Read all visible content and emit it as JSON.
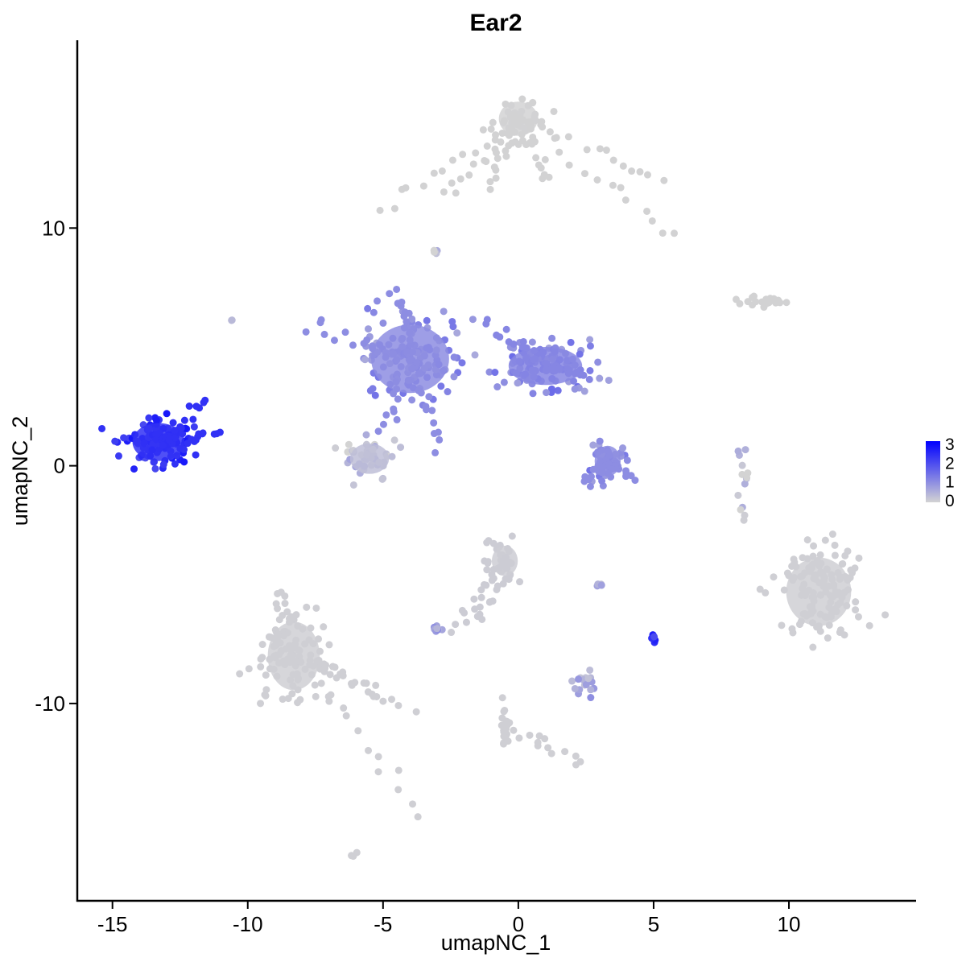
{
  "chart_data": {
    "type": "scatter",
    "title": "Ear2",
    "xlabel": "umapNC_1",
    "ylabel": "umapNC_2",
    "xlim": [
      -16.3,
      14.7
    ],
    "ylim": [
      -18.3,
      17.9
    ],
    "xticks": [
      -15,
      -10,
      -5,
      0,
      5,
      10
    ],
    "xtick_labels": [
      "-15",
      "-10",
      "-5",
      "0",
      "5",
      "10"
    ],
    "yticks": [
      10,
      0,
      -10
    ],
    "ytick_labels": [
      "10",
      "0",
      "-10"
    ],
    "grid": false,
    "legend": {
      "placement": "right",
      "labels": [
        "3",
        "2",
        "1",
        "0"
      ],
      "values": [
        3,
        2,
        1,
        0
      ],
      "min_color": "#d3d3d3",
      "max_color": "#0000ff"
    },
    "clusters": [
      {
        "center": [
          -13.3,
          1.0
        ],
        "spread": [
          1.2,
          1.0
        ],
        "expr": 2.3,
        "points": 110,
        "tail": [
          [
            -11.5,
            2.7
          ],
          [
            -11.0,
            1.3
          ]
        ]
      },
      {
        "center": [
          0.0,
          14.6
        ],
        "spread": [
          0.9,
          0.9
        ],
        "expr": 0.02,
        "points": 40,
        "tail": [
          [
            -1.0,
            11.8
          ],
          [
            1.2,
            12.0
          ],
          [
            -2.6,
            11.4
          ],
          [
            5.5,
            12.0
          ],
          [
            5.7,
            9.7
          ],
          [
            -4.9,
            10.8
          ]
        ]
      },
      {
        "center": [
          -4.0,
          4.5
        ],
        "spread": [
          1.8,
          1.8
        ],
        "expr": 1.0,
        "points": 120,
        "tail": [
          [
            -7.8,
            5.9
          ],
          [
            -5.0,
            1.5
          ],
          [
            -4.5,
            7.5
          ],
          [
            -2.8,
            0.8
          ]
        ]
      },
      {
        "center": [
          1.0,
          4.2
        ],
        "spread": [
          1.7,
          1.0
        ],
        "expr": 1.1,
        "points": 110,
        "tail": [
          [
            -1.2,
            6.0
          ],
          [
            2.5,
            3.8
          ]
        ]
      },
      {
        "center": [
          -5.5,
          0.3
        ],
        "spread": [
          0.9,
          0.8
        ],
        "expr": 0.3,
        "points": 50,
        "tail": []
      },
      {
        "center": [
          3.3,
          0.2
        ],
        "spread": [
          0.6,
          0.8
        ],
        "expr": 1.0,
        "points": 35,
        "tail": [
          [
            2.6,
            -0.7
          ],
          [
            4.2,
            -0.4
          ]
        ]
      },
      {
        "center": [
          -8.3,
          -8.0
        ],
        "spread": [
          1.2,
          1.8
        ],
        "expr": 0.05,
        "points": 90,
        "tail": [
          [
            -5.0,
            -9.5
          ],
          [
            -3.9,
            -10.3
          ],
          [
            -3.6,
            -14.5
          ],
          [
            -8.9,
            -5.4
          ]
        ]
      },
      {
        "center": [
          11.1,
          -5.3
        ],
        "spread": [
          1.5,
          1.8
        ],
        "expr": 0.05,
        "points": 130,
        "tail": []
      },
      {
        "center": [
          -0.5,
          -4.0
        ],
        "spread": [
          0.6,
          0.8
        ],
        "expr": 0.1,
        "points": 30,
        "tail": [
          [
            -1.5,
            -6.5
          ],
          [
            -2.5,
            -6.9
          ]
        ]
      },
      {
        "center": [
          2.4,
          -9.2
        ],
        "spread": [
          0.5,
          0.5
        ],
        "expr": 0.6,
        "points": 18,
        "tail": []
      },
      {
        "center": [
          -0.5,
          -11.0
        ],
        "spread": [
          0.2,
          1.3
        ],
        "expr": 0.05,
        "points": 18,
        "tail": [
          [
            2.4,
            -12.4
          ]
        ]
      },
      {
        "center": [
          9.0,
          6.9
        ],
        "spread": [
          0.9,
          0.2
        ],
        "expr": 0.02,
        "points": 20,
        "tail": []
      },
      {
        "center": [
          8.3,
          -0.5
        ],
        "spread": [
          0.2,
          1.3
        ],
        "expr": 0.2,
        "points": 14,
        "tail": []
      },
      {
        "center": [
          5.0,
          -7.3
        ],
        "spread": [
          0.12,
          0.15
        ],
        "expr": 2.2,
        "points": 6,
        "tail": []
      },
      {
        "center": [
          -3.0,
          -6.8
        ],
        "spread": [
          0.2,
          0.2
        ],
        "expr": 0.8,
        "points": 8,
        "tail": []
      },
      {
        "center": [
          3.0,
          -5.0
        ],
        "spread": [
          0.2,
          0.1
        ],
        "expr": 0.5,
        "points": 4,
        "tail": []
      },
      {
        "center": [
          -3.1,
          9.0
        ],
        "spread": [
          0.15,
          0.2
        ],
        "expr": 0.3,
        "points": 4,
        "tail": []
      },
      {
        "center": [
          -10.6,
          6.1
        ],
        "spread": [
          0.1,
          0.1
        ],
        "expr": 0.3,
        "points": 2,
        "tail": []
      },
      {
        "center": [
          -6.1,
          -16.3
        ],
        "spread": [
          0.15,
          0.1
        ],
        "expr": 0.05,
        "points": 3,
        "tail": []
      }
    ]
  }
}
